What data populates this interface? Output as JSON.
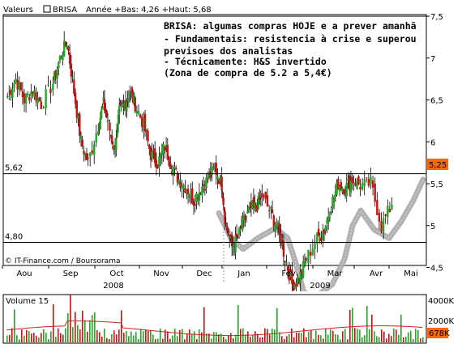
{
  "header": {
    "legend_values": "Valeurs",
    "legend_symbol": "BRISA",
    "stats": "Année +Bas: 4,26 +Haut: 5,68"
  },
  "annotation": {
    "lines": [
      "BRISA: algumas compras HOJE e a prever amanhã",
      "- Fundamentais: resistencia à crise e superou",
      "previsoes dos analistas",
      "- Técnicamente: H&S invertido",
      " (Zona de compra de 5.2 a 5,4€)"
    ]
  },
  "credit": "© IT-Finance.com / Boursorama",
  "colors": {
    "up": "#22aa22",
    "down": "#cc1111",
    "pattern": "#aaaaaa",
    "last_box": "#ff6600",
    "volume_line": "#cc2222",
    "frame": "#000000"
  },
  "chart_data": {
    "type": "candlestick",
    "x_ticks": [
      "Aou",
      "Sep",
      "Oct",
      "Nov",
      "Dec",
      "Jan",
      "Fev",
      "Mar",
      "Avr",
      "Mai"
    ],
    "x_years": [
      "2008",
      "2009"
    ],
    "ylim": [
      4.0,
      7.6
    ],
    "y_ticks": [
      "7,5",
      "7",
      "6,5",
      "6",
      "5,5",
      "5",
      "4,5"
    ],
    "hlines": [
      {
        "value": 5.62,
        "label": "5,62"
      },
      {
        "value": 4.8,
        "label": "4,80"
      }
    ],
    "last_price": "5,25",
    "close_path": [
      [
        "Aou",
        6.55
      ],
      [
        "Aou",
        6.75
      ],
      [
        "Aou",
        6.5
      ],
      [
        "Aou",
        6.62
      ],
      [
        "Aou",
        6.45
      ],
      [
        "Sep",
        6.7
      ],
      [
        "Sep",
        7.0
      ],
      [
        "Sep",
        7.2
      ],
      [
        "Sep",
        6.6
      ],
      [
        "Sep",
        6.0
      ],
      [
        "Sep",
        5.75
      ],
      [
        "Oct",
        6.2
      ],
      [
        "Oct",
        6.45
      ],
      [
        "Oct",
        6.2
      ],
      [
        "Oct",
        5.9
      ],
      [
        "Oct",
        6.35
      ],
      [
        "Oct",
        6.45
      ],
      [
        "Oct",
        6.6
      ],
      [
        "Oct",
        6.45
      ],
      [
        "Nov",
        6.2
      ],
      [
        "Nov",
        5.85
      ],
      [
        "Nov",
        5.75
      ],
      [
        "Nov",
        5.95
      ],
      [
        "Nov",
        5.7
      ],
      [
        "Nov",
        5.55
      ],
      [
        "Dec",
        5.45
      ],
      [
        "Dec",
        5.3
      ],
      [
        "Dec",
        5.45
      ],
      [
        "Dec",
        5.55
      ],
      [
        "Dec",
        5.68
      ],
      [
        "Dec",
        5.5
      ],
      [
        "Jan",
        5.0
      ],
      [
        "Jan",
        4.75
      ],
      [
        "Jan",
        4.85
      ],
      [
        "Jan",
        5.05
      ],
      [
        "Jan",
        5.2
      ],
      [
        "Jan",
        5.22
      ],
      [
        "Jan",
        5.35
      ],
      [
        "Fev",
        5.15
      ],
      [
        "Fev",
        4.95
      ],
      [
        "Fev",
        4.62
      ],
      [
        "Fev",
        4.3
      ],
      [
        "Fev",
        4.35
      ],
      [
        "Fev",
        4.6
      ],
      [
        "Mar",
        4.85
      ],
      [
        "Mar",
        4.95
      ],
      [
        "Mar",
        5.25
      ],
      [
        "Mar",
        5.5
      ],
      [
        "Mar",
        5.45
      ],
      [
        "Mar",
        5.55
      ],
      [
        "Avr",
        5.48
      ],
      [
        "Avr",
        5.5
      ],
      [
        "Avr",
        5.0
      ],
      [
        "Avr",
        5.25
      ]
    ],
    "volume": {
      "title": "Volume 15",
      "ylim": [
        0,
        5000
      ],
      "y_ticks": [
        "4000K",
        "2000K"
      ],
      "last_value": "678K"
    }
  }
}
